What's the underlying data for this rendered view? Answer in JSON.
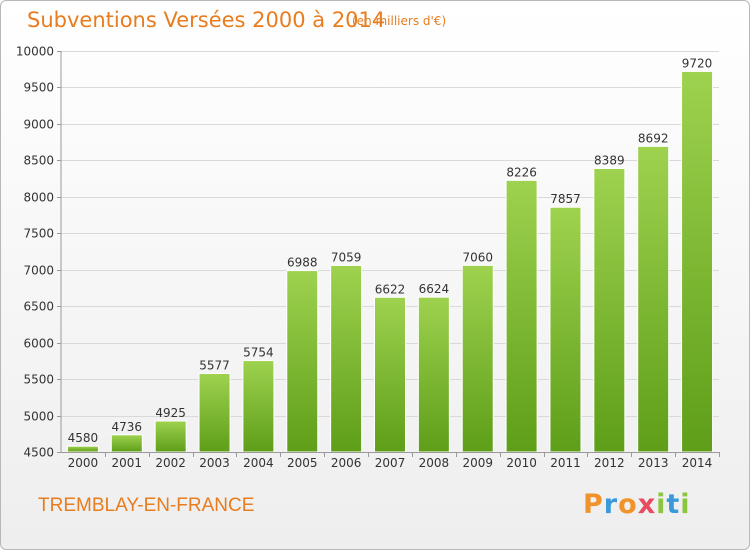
{
  "header": {
    "title": "Subventions Versées 2000 à 2014",
    "subtitle": "(en milliers d'€)"
  },
  "footer": {
    "city": "TREMBLAY-EN-FRANCE",
    "logo_text": "Proxiti",
    "logo_colors": [
      "#f0932a",
      "#3a9ad9",
      "#f0932a",
      "#e84a5f",
      "#8cc63f",
      "#3a9ad9",
      "#8cc63f"
    ]
  },
  "colors": {
    "bar_top": "#9ed24f",
    "bar_bottom": "#5e9e18",
    "title": "#e87c1e",
    "grid": "#d9d9d9"
  },
  "chart_data": {
    "type": "bar",
    "title": "Subventions Versées 2000 à 2014",
    "subtitle": "(en milliers d'€)",
    "xlabel": "",
    "ylabel": "",
    "categories": [
      "2000",
      "2001",
      "2002",
      "2003",
      "2004",
      "2005",
      "2006",
      "2007",
      "2008",
      "2009",
      "2010",
      "2011",
      "2012",
      "2013",
      "2014"
    ],
    "values": [
      4580,
      4736,
      4925,
      5577,
      5754,
      6988,
      7059,
      6622,
      6624,
      7060,
      8226,
      7857,
      8389,
      8692,
      9720
    ],
    "ylim": [
      4500,
      10000
    ],
    "yticks": [
      4500,
      5000,
      5500,
      6000,
      6500,
      7000,
      7500,
      8000,
      8500,
      9000,
      9500,
      10000
    ],
    "grid": true,
    "data_labels": true
  }
}
